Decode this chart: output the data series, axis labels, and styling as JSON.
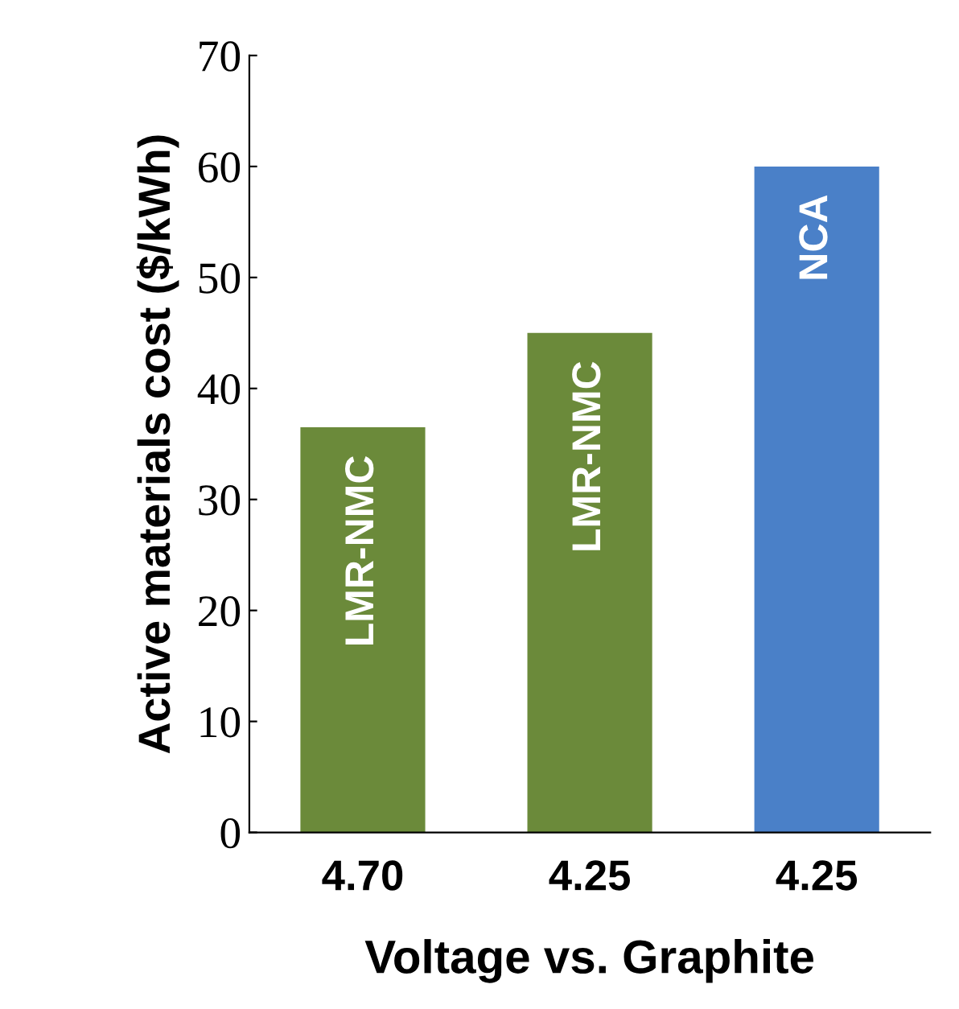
{
  "chart_data": {
    "type": "bar",
    "xlabel": "Voltage vs. Graphite",
    "ylabel": "Active materials cost ($/kWh)",
    "categories": [
      "4.70",
      "4.25",
      "4.25"
    ],
    "values": [
      36.5,
      45,
      60
    ],
    "colors": [
      "#6b8a3a",
      "#6b8a3a",
      "#4a80c8"
    ],
    "annotations": [
      "LMR-NMC",
      "LMR-NMC",
      "NCA"
    ],
    "ylim": [
      0,
      70
    ],
    "yticks": [
      0,
      10,
      20,
      30,
      40,
      50,
      60,
      70
    ],
    "grid": false
  }
}
